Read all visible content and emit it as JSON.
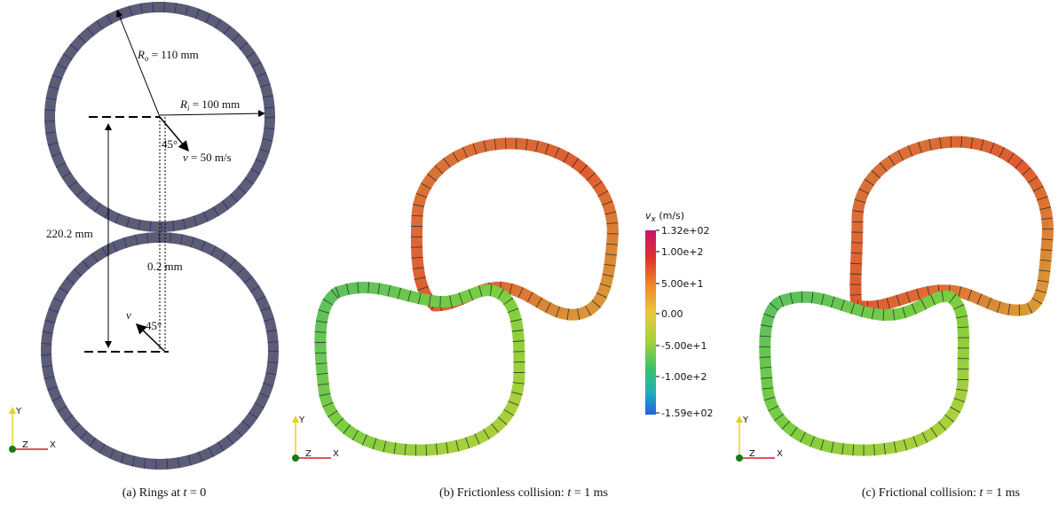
{
  "panel_a": {
    "outer_radius": {
      "symbol": "R",
      "subscript": "o",
      "text": " = 110 mm"
    },
    "inner_radius": {
      "symbol": "R",
      "subscript": "i",
      "text": " = 100 mm"
    },
    "angle_top": "45°",
    "velocity": {
      "symbol": "v",
      "text": " = 50 m/s"
    },
    "distance": "220.2 mm",
    "gap": "0.2 mm",
    "velocity_bottom": "v",
    "angle_bottom": "45°"
  },
  "colorbar": {
    "symbol": "v",
    "subscript": "x",
    "unit": " (m/s)",
    "ticks": [
      "1.32e+02",
      "1.00e+2",
      "5.00e+1",
      "0.00",
      "-5.00e+1",
      "-1.00e+2",
      "-1.59e+02"
    ]
  },
  "axes_triad": {
    "y": "Y",
    "z": "Z",
    "x": "X"
  },
  "captions": [
    {
      "label": "(a) Rings at ",
      "var": "t",
      "rest": " = 0"
    },
    {
      "label": "(b) Frictionless collision: ",
      "var": "t",
      "rest": " = 1 ms"
    },
    {
      "label": "(c) Frictional collision: ",
      "var": "t",
      "rest": " = 1 ms"
    }
  ]
}
